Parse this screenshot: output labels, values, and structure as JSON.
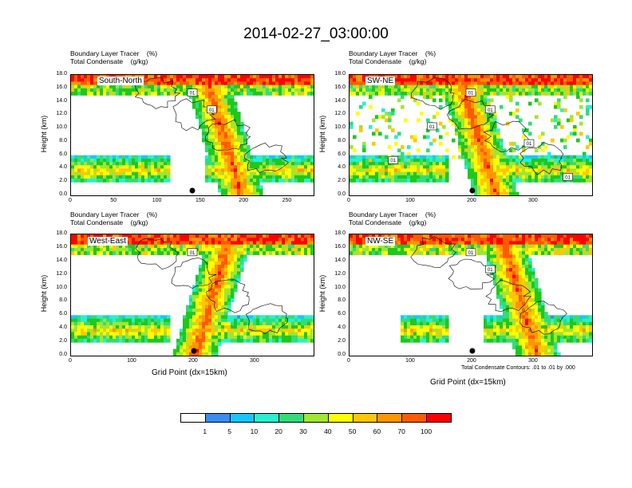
{
  "title": "2014-02-27_03:00:00",
  "chart_data": [
    {
      "type": "heatmap",
      "region": "South-North",
      "labels": [
        "Boundary Layer Tracer    (%)",
        "Total Condensate    (g/kg)"
      ],
      "xticks": [
        "0",
        "50",
        "100",
        "150",
        "200",
        "250"
      ],
      "xlim": [
        0,
        280
      ],
      "ylim": [
        0,
        18
      ],
      "yticks": [
        "0.0",
        "2.0",
        "4.0",
        "6.0",
        "8.0",
        "10.0",
        "12.0",
        "14.0",
        "16.0",
        "18.0"
      ],
      "ylabel": "Height (km)",
      "xlabel": "",
      "marker_x": 140,
      "contour_labels": [
        "01",
        "01"
      ]
    },
    {
      "type": "heatmap",
      "region": "SW-NE",
      "labels": [
        "Boundary Layer Tracer    (%)",
        "Total Condensate    (g/kg)"
      ],
      "xticks": [
        "0",
        "100",
        "200",
        "300"
      ],
      "xlim": [
        0,
        395
      ],
      "ylim": [
        0,
        18
      ],
      "yticks": [
        "0.0",
        "2.0",
        "4.0",
        "6.0",
        "8.0",
        "10.0",
        "12.0",
        "14.0",
        "16.0",
        "18.0"
      ],
      "ylabel": "Height (km)",
      "xlabel": "",
      "marker_x": 200,
      "contour_labels": [
        "01",
        "01",
        "01",
        "01",
        "01",
        "01"
      ]
    },
    {
      "type": "heatmap",
      "region": "West-East",
      "labels": [
        "Boundary Layer Tracer    (%)",
        "Total Condensate    (g/kg)"
      ],
      "xticks": [
        "0",
        "100",
        "200",
        "300"
      ],
      "xlim": [
        0,
        395
      ],
      "ylim": [
        0,
        18
      ],
      "yticks": [
        "0.0",
        "2.0",
        "4.0",
        "6.0",
        "8.0",
        "10.0",
        "12.0",
        "14.0",
        "16.0",
        "18.0"
      ],
      "ylabel": "Height (km)",
      "xlabel": "Grid Point (dx=15km)",
      "marker_x": 200,
      "contour_labels": [
        "01"
      ]
    },
    {
      "type": "heatmap",
      "region": "NW-SE",
      "labels": [
        "Boundary Layer Tracer    (%)",
        "Total Condensate    (g/kg)"
      ],
      "xticks": [
        "0",
        "100",
        "200",
        "300"
      ],
      "xlim": [
        0,
        395
      ],
      "ylim": [
        0,
        18
      ],
      "yticks": [
        "0.0",
        "2.0",
        "4.0",
        "6.0",
        "8.0",
        "10.0",
        "12.0",
        "14.0",
        "16.0",
        "18.0"
      ],
      "ylabel": "Height (km)",
      "xlabel": "Grid Point (dx=15km)",
      "marker_x": 200,
      "contour_labels": [
        "01",
        "01"
      ],
      "contour_note": "Total Condensate Contours: .01 to .01 by .000"
    }
  ],
  "colorbar": {
    "labels": [
      "1",
      "5",
      "10",
      "20",
      "30",
      "40",
      "50",
      "60",
      "70",
      "100"
    ],
    "colors": [
      "#ffffff",
      "#3a8cf0",
      "#14c8ff",
      "#28f0d0",
      "#32dc78",
      "#1ec81e",
      "#a0e632",
      "#ffff00",
      "#ffc800",
      "#ff9600",
      "#ff5a00",
      "#ff0000"
    ]
  }
}
